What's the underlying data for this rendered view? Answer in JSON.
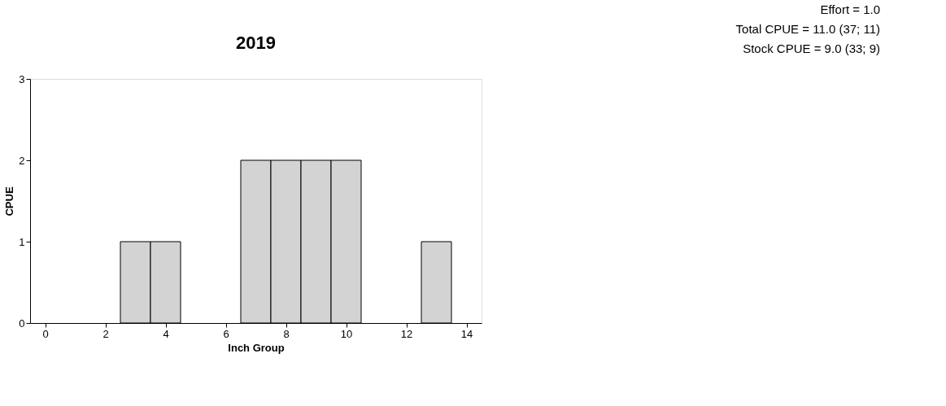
{
  "chart_data": {
    "type": "histogram",
    "title": "2019",
    "xlabel": "Inch Group",
    "ylabel": "CPUE",
    "bins": [
      -0.5,
      0.5,
      1.5,
      2.5,
      3.5,
      4.5,
      5.5,
      6.5,
      7.5,
      8.5,
      9.5,
      10.5,
      11.5,
      12.5,
      13.5,
      14.5
    ],
    "values": [
      0,
      0,
      0,
      1,
      1,
      0,
      0,
      2,
      2,
      2,
      2,
      0,
      0,
      1,
      0
    ],
    "color": "#d3d3d3",
    "xlim": [
      -0.5,
      14.5
    ],
    "xticks": [
      0,
      2,
      4,
      6,
      8,
      10,
      12,
      14
    ],
    "ylim": [
      0,
      3
    ],
    "yticks": [
      0,
      1,
      2,
      3
    ],
    "grid": false,
    "annotations": [
      "Effort =            1.0",
      "Total CPUE = 11.0 (37; 11)",
      "Stock CPUE =      9.0 (33; 9)"
    ]
  }
}
